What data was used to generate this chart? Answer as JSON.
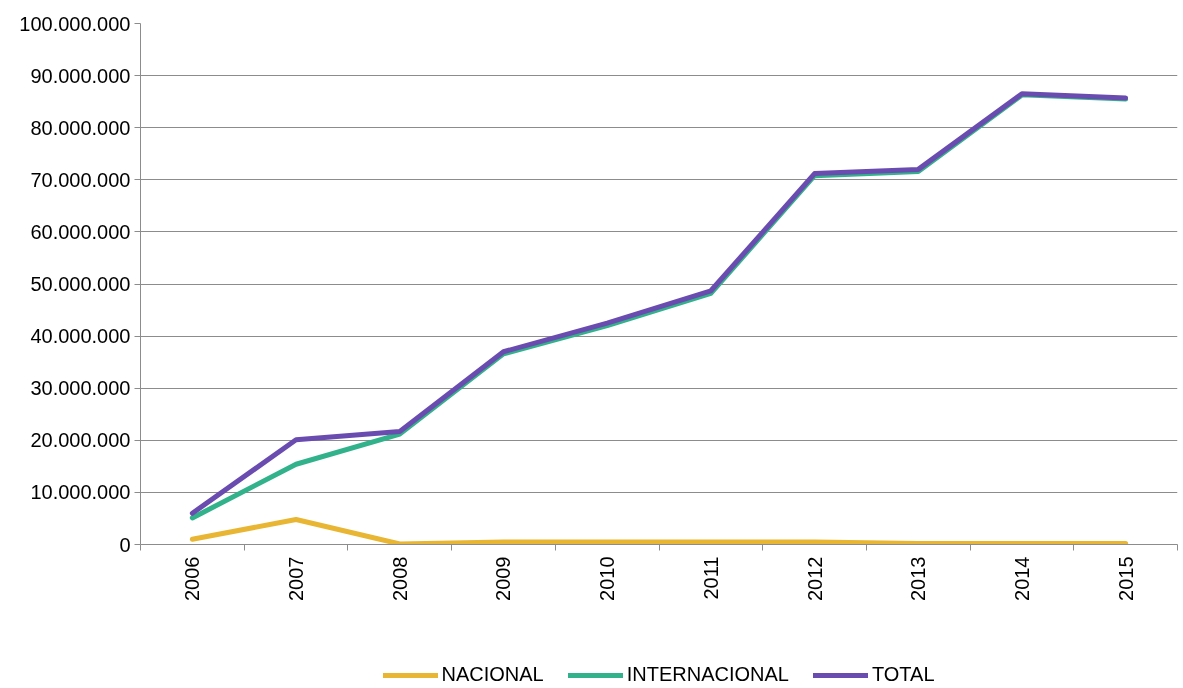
{
  "chart_data": {
    "type": "line",
    "categories": [
      "2006",
      "2007",
      "2008",
      "2009",
      "2010",
      "2011",
      "2012",
      "2013",
      "2014",
      "2015"
    ],
    "series": [
      {
        "name": "NACIONAL",
        "color": "#e8b632",
        "values": [
          1000000,
          4800000,
          100000,
          500000,
          500000,
          500000,
          500000,
          200000,
          200000,
          200000
        ]
      },
      {
        "name": "INTERNACIONAL",
        "color": "#32b28a",
        "values": [
          5100000,
          15400000,
          21200000,
          36600000,
          42000000,
          48200000,
          70800000,
          71600000,
          86300000,
          85500000
        ]
      },
      {
        "name": "TOTAL",
        "color": "#6a4cb0",
        "values": [
          6000000,
          20100000,
          21700000,
          37000000,
          42500000,
          48700000,
          71200000,
          72000000,
          86500000,
          85700000
        ]
      }
    ],
    "ylim": [
      0,
      100000000
    ],
    "yticks": [
      0,
      {
        "value": 10000000,
        "label": "10.000.000"
      },
      {
        "value": 20000000,
        "label": "20.000.000"
      },
      {
        "value": 30000000,
        "label": "30.000.000"
      },
      {
        "value": 40000000,
        "label": "40.000.000"
      },
      {
        "value": 50000000,
        "label": "50.000.000"
      },
      {
        "value": 60000000,
        "label": "60.000.000"
      },
      {
        "value": 70000000,
        "label": "70.000.000"
      },
      {
        "value": 80000000,
        "label": "80.000.000"
      },
      {
        "value": 90000000,
        "label": "90.000.000"
      },
      {
        "value": 100000000,
        "label": "100.000.000"
      }
    ],
    "grid": "y",
    "legend": "bottom"
  }
}
